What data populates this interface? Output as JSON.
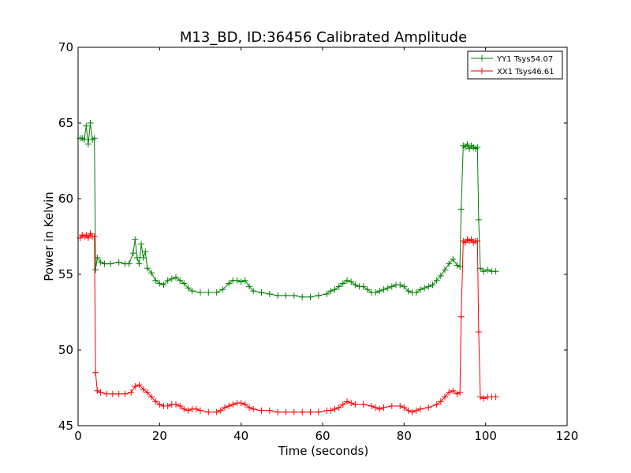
{
  "chart_data": {
    "type": "line",
    "title": "M13_BD, ID:36456 Calibrated Amplitude",
    "xlabel": "Time (seconds)",
    "ylabel": "Power in Kelvin",
    "xlim": [
      0,
      120
    ],
    "ylim": [
      45,
      70
    ],
    "xticks": [
      "0",
      "20",
      "40",
      "60",
      "80",
      "100",
      "120"
    ],
    "yticks": [
      "45",
      "50",
      "55",
      "60",
      "65",
      "70"
    ],
    "grid": false,
    "legend_position": "top-right",
    "marker": "+",
    "series": [
      {
        "name": "YY1 Tsys54.07",
        "color": "#008000",
        "points": [
          [
            0.5,
            64.0
          ],
          [
            1.0,
            64.0
          ],
          [
            1.5,
            63.9
          ],
          [
            2.0,
            64.8
          ],
          [
            2.5,
            63.6
          ],
          [
            3.0,
            65.0
          ],
          [
            3.5,
            63.9
          ],
          [
            4.0,
            64.0
          ],
          [
            4.3,
            55.3
          ],
          [
            4.7,
            56.1
          ],
          [
            5.5,
            55.8
          ],
          [
            6.5,
            55.7
          ],
          [
            8.0,
            55.7
          ],
          [
            10.0,
            55.8
          ],
          [
            11.5,
            55.7
          ],
          [
            12.5,
            55.7
          ],
          [
            13.5,
            56.4
          ],
          [
            14.0,
            57.3
          ],
          [
            14.5,
            56.1
          ],
          [
            15.0,
            55.7
          ],
          [
            15.5,
            57.0
          ],
          [
            16.0,
            56.1
          ],
          [
            16.5,
            56.5
          ],
          [
            17.0,
            55.4
          ],
          [
            18.0,
            55.1
          ],
          [
            19.0,
            54.6
          ],
          [
            20.0,
            54.4
          ],
          [
            21.0,
            54.3
          ],
          [
            22.0,
            54.6
          ],
          [
            23.0,
            54.7
          ],
          [
            24.0,
            54.8
          ],
          [
            25.0,
            54.6
          ],
          [
            26.0,
            54.4
          ],
          [
            27.0,
            54.1
          ],
          [
            28.0,
            53.9
          ],
          [
            30.0,
            53.8
          ],
          [
            32.0,
            53.8
          ],
          [
            34.0,
            53.8
          ],
          [
            35.5,
            54.0
          ],
          [
            37.0,
            54.4
          ],
          [
            38.0,
            54.6
          ],
          [
            39.0,
            54.6
          ],
          [
            40.0,
            54.5
          ],
          [
            41.0,
            54.6
          ],
          [
            42.0,
            54.2
          ],
          [
            43.0,
            53.9
          ],
          [
            45.0,
            53.8
          ],
          [
            47.0,
            53.7
          ],
          [
            49.0,
            53.6
          ],
          [
            51.0,
            53.6
          ],
          [
            53.0,
            53.6
          ],
          [
            55.0,
            53.5
          ],
          [
            57.0,
            53.5
          ],
          [
            59.0,
            53.6
          ],
          [
            61.0,
            53.7
          ],
          [
            62.0,
            53.9
          ],
          [
            63.0,
            54.0
          ],
          [
            64.0,
            54.2
          ],
          [
            65.0,
            54.4
          ],
          [
            66.0,
            54.6
          ],
          [
            67.0,
            54.5
          ],
          [
            68.0,
            54.3
          ],
          [
            69.0,
            54.2
          ],
          [
            70.0,
            54.2
          ],
          [
            71.0,
            54.0
          ],
          [
            72.0,
            53.8
          ],
          [
            73.0,
            53.8
          ],
          [
            74.0,
            53.9
          ],
          [
            75.0,
            54.0
          ],
          [
            76.0,
            54.1
          ],
          [
            77.0,
            54.2
          ],
          [
            78.0,
            54.3
          ],
          [
            79.0,
            54.3
          ],
          [
            80.0,
            54.2
          ],
          [
            81.0,
            53.9
          ],
          [
            82.0,
            53.8
          ],
          [
            83.0,
            53.8
          ],
          [
            84.0,
            54.0
          ],
          [
            85.0,
            54.1
          ],
          [
            86.0,
            54.2
          ],
          [
            87.0,
            54.3
          ],
          [
            88.0,
            54.6
          ],
          [
            89.0,
            54.9
          ],
          [
            90.0,
            55.3
          ],
          [
            91.0,
            55.7
          ],
          [
            92.0,
            56.0
          ],
          [
            93.0,
            55.6
          ],
          [
            93.7,
            55.5
          ],
          [
            94.0,
            59.3
          ],
          [
            94.5,
            63.5
          ],
          [
            95.0,
            63.4
          ],
          [
            95.5,
            63.6
          ],
          [
            96.0,
            63.3
          ],
          [
            96.5,
            63.5
          ],
          [
            97.0,
            63.4
          ],
          [
            97.5,
            63.3
          ],
          [
            98.0,
            63.4
          ],
          [
            98.3,
            58.6
          ],
          [
            98.7,
            55.4
          ],
          [
            99.5,
            55.2
          ],
          [
            100.5,
            55.3
          ],
          [
            101.5,
            55.2
          ],
          [
            102.5,
            55.2
          ]
        ]
      },
      {
        "name": "XX1 Tsys46.61",
        "color": "#ff0000",
        "points": [
          [
            0.5,
            57.4
          ],
          [
            1.0,
            57.6
          ],
          [
            1.5,
            57.5
          ],
          [
            2.0,
            57.6
          ],
          [
            2.5,
            57.4
          ],
          [
            3.0,
            57.7
          ],
          [
            3.5,
            57.5
          ],
          [
            4.0,
            57.5
          ],
          [
            4.3,
            48.5
          ],
          [
            4.7,
            47.3
          ],
          [
            5.5,
            47.2
          ],
          [
            7.0,
            47.1
          ],
          [
            8.5,
            47.1
          ],
          [
            10.0,
            47.1
          ],
          [
            11.5,
            47.1
          ],
          [
            13.0,
            47.2
          ],
          [
            14.0,
            47.6
          ],
          [
            15.0,
            47.7
          ],
          [
            16.0,
            47.4
          ],
          [
            17.0,
            47.2
          ],
          [
            18.0,
            46.9
          ],
          [
            19.0,
            46.6
          ],
          [
            20.0,
            46.4
          ],
          [
            21.0,
            46.3
          ],
          [
            22.0,
            46.3
          ],
          [
            23.0,
            46.4
          ],
          [
            24.0,
            46.4
          ],
          [
            25.0,
            46.3
          ],
          [
            26.0,
            46.1
          ],
          [
            27.0,
            46.0
          ],
          [
            28.0,
            46.1
          ],
          [
            29.0,
            46.1
          ],
          [
            30.0,
            46.0
          ],
          [
            32.0,
            45.9
          ],
          [
            34.0,
            45.9
          ],
          [
            35.0,
            46.0
          ],
          [
            36.0,
            46.2
          ],
          [
            37.0,
            46.3
          ],
          [
            38.0,
            46.4
          ],
          [
            39.0,
            46.5
          ],
          [
            40.0,
            46.5
          ],
          [
            41.0,
            46.4
          ],
          [
            42.0,
            46.2
          ],
          [
            43.0,
            46.1
          ],
          [
            45.0,
            46.0
          ],
          [
            47.0,
            46.0
          ],
          [
            49.0,
            45.9
          ],
          [
            51.0,
            45.9
          ],
          [
            53.0,
            45.9
          ],
          [
            55.0,
            45.9
          ],
          [
            57.0,
            45.9
          ],
          [
            59.0,
            45.9
          ],
          [
            61.0,
            46.0
          ],
          [
            62.0,
            46.0
          ],
          [
            63.0,
            46.1
          ],
          [
            64.0,
            46.2
          ],
          [
            65.0,
            46.4
          ],
          [
            66.0,
            46.6
          ],
          [
            67.0,
            46.5
          ],
          [
            68.0,
            46.4
          ],
          [
            70.0,
            46.4
          ],
          [
            72.0,
            46.3
          ],
          [
            73.0,
            46.2
          ],
          [
            74.0,
            46.1
          ],
          [
            75.0,
            46.2
          ],
          [
            77.0,
            46.3
          ],
          [
            79.0,
            46.3
          ],
          [
            80.0,
            46.2
          ],
          [
            81.0,
            46.0
          ],
          [
            82.0,
            45.9
          ],
          [
            83.0,
            46.0
          ],
          [
            84.0,
            46.1
          ],
          [
            86.0,
            46.2
          ],
          [
            88.0,
            46.4
          ],
          [
            89.0,
            46.6
          ],
          [
            90.0,
            46.9
          ],
          [
            91.0,
            47.2
          ],
          [
            92.0,
            47.3
          ],
          [
            93.0,
            47.1
          ],
          [
            93.7,
            47.2
          ],
          [
            94.0,
            52.2
          ],
          [
            94.5,
            57.2
          ],
          [
            95.0,
            57.1
          ],
          [
            95.5,
            57.3
          ],
          [
            96.0,
            57.2
          ],
          [
            96.5,
            57.3
          ],
          [
            97.0,
            57.1
          ],
          [
            97.5,
            57.2
          ],
          [
            98.0,
            57.2
          ],
          [
            98.3,
            51.2
          ],
          [
            98.7,
            46.9
          ],
          [
            99.5,
            46.8
          ],
          [
            100.5,
            46.9
          ],
          [
            101.5,
            46.9
          ],
          [
            102.5,
            46.9
          ]
        ]
      }
    ]
  }
}
